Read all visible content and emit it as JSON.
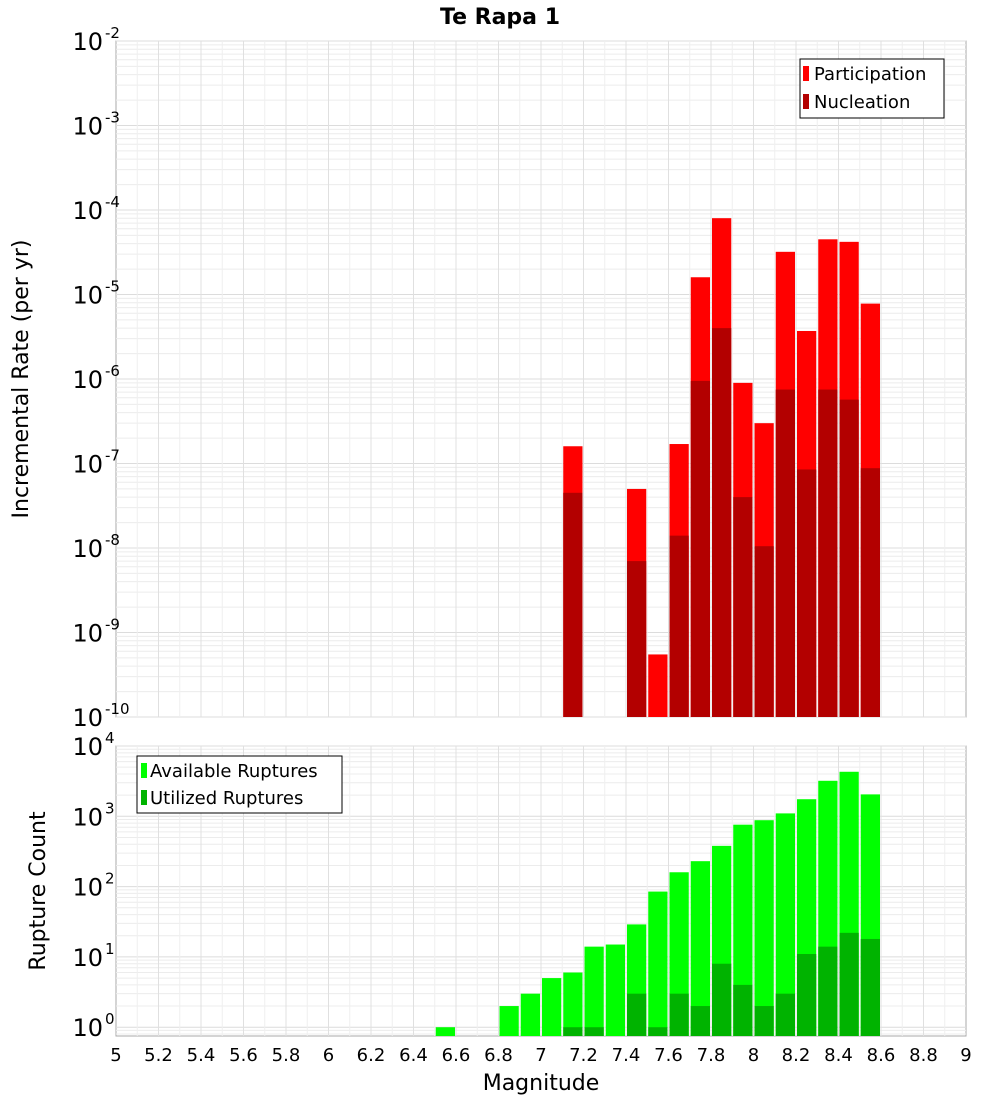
{
  "chart_data": [
    {
      "type": "bar",
      "title": "Te Rapa 1",
      "xlabel": "",
      "ylabel": "Incremental Rate (per yr)",
      "y_scale": "log",
      "ylim": [
        1e-10,
        0.01
      ],
      "xlim": [
        5,
        9
      ],
      "y_ticks": [
        {
          "base": "10",
          "exp": "-10"
        },
        {
          "base": "10",
          "exp": "-9"
        },
        {
          "base": "10",
          "exp": "-8"
        },
        {
          "base": "10",
          "exp": "-7"
        },
        {
          "base": "10",
          "exp": "-6"
        },
        {
          "base": "10",
          "exp": "-5"
        },
        {
          "base": "10",
          "exp": "-4"
        },
        {
          "base": "10",
          "exp": "-3"
        },
        {
          "base": "10",
          "exp": "-2"
        }
      ],
      "grid": true,
      "legend_position": "top-right",
      "bar_width": 0.1,
      "series": [
        {
          "name": "Participation",
          "color": "#ff0000",
          "points": [
            {
              "x": 7.15,
              "y": 1.6e-07
            },
            {
              "x": 7.45,
              "y": 5e-08
            },
            {
              "x": 7.55,
              "y": 5.5e-10
            },
            {
              "x": 7.65,
              "y": 1.7e-07
            },
            {
              "x": 7.75,
              "y": 1.6e-05
            },
            {
              "x": 7.85,
              "y": 8e-05
            },
            {
              "x": 7.95,
              "y": 9e-07
            },
            {
              "x": 8.05,
              "y": 3e-07
            },
            {
              "x": 8.15,
              "y": 3.2e-05
            },
            {
              "x": 8.25,
              "y": 3.7e-06
            },
            {
              "x": 8.35,
              "y": 4.5e-05
            },
            {
              "x": 8.45,
              "y": 4.2e-05
            },
            {
              "x": 8.55,
              "y": 7.8e-06
            }
          ]
        },
        {
          "name": "Nucleation",
          "color": "#b30000",
          "points": [
            {
              "x": 7.15,
              "y": 4.5e-08
            },
            {
              "x": 7.45,
              "y": 7e-09
            },
            {
              "x": 7.65,
              "y": 1.4e-08
            },
            {
              "x": 7.75,
              "y": 9.5e-07
            },
            {
              "x": 7.85,
              "y": 4e-06
            },
            {
              "x": 7.95,
              "y": 4e-08
            },
            {
              "x": 8.05,
              "y": 1.05e-08
            },
            {
              "x": 8.15,
              "y": 7.5e-07
            },
            {
              "x": 8.25,
              "y": 8.5e-08
            },
            {
              "x": 8.35,
              "y": 7.5e-07
            },
            {
              "x": 8.45,
              "y": 5.7e-07
            },
            {
              "x": 8.55,
              "y": 8.8e-08
            }
          ]
        }
      ]
    },
    {
      "type": "bar",
      "title": "",
      "xlabel": "Magnitude",
      "ylabel": "Rupture Count",
      "y_scale": "log",
      "ylim": [
        0.75,
        10000
      ],
      "xlim": [
        5,
        9
      ],
      "x_ticks": [
        "5",
        "5.2",
        "5.4",
        "5.6",
        "5.8",
        "6",
        "6.2",
        "6.4",
        "6.6",
        "6.8",
        "7",
        "7.2",
        "7.4",
        "7.6",
        "7.8",
        "8",
        "8.2",
        "8.4",
        "8.6",
        "8.8",
        "9"
      ],
      "y_ticks": [
        {
          "base": "10",
          "exp": "0"
        },
        {
          "base": "10",
          "exp": "1"
        },
        {
          "base": "10",
          "exp": "2"
        },
        {
          "base": "10",
          "exp": "3"
        },
        {
          "base": "10",
          "exp": "4"
        }
      ],
      "grid": true,
      "legend_position": "top-left",
      "bar_width": 0.1,
      "series": [
        {
          "name": "Available Ruptures",
          "color": "#00ff00",
          "points": [
            {
              "x": 6.55,
              "y": 1
            },
            {
              "x": 6.85,
              "y": 2
            },
            {
              "x": 6.95,
              "y": 3
            },
            {
              "x": 7.05,
              "y": 5
            },
            {
              "x": 7.15,
              "y": 6
            },
            {
              "x": 7.25,
              "y": 14
            },
            {
              "x": 7.35,
              "y": 15
            },
            {
              "x": 7.45,
              "y": 29
            },
            {
              "x": 7.55,
              "y": 85
            },
            {
              "x": 7.65,
              "y": 160
            },
            {
              "x": 7.75,
              "y": 230
            },
            {
              "x": 7.85,
              "y": 380
            },
            {
              "x": 7.95,
              "y": 760
            },
            {
              "x": 8.05,
              "y": 880
            },
            {
              "x": 8.15,
              "y": 1100
            },
            {
              "x": 8.25,
              "y": 1750
            },
            {
              "x": 8.35,
              "y": 3200
            },
            {
              "x": 8.45,
              "y": 4300
            },
            {
              "x": 8.55,
              "y": 2050
            }
          ]
        },
        {
          "name": "Utilized Ruptures",
          "color": "#00b300",
          "points": [
            {
              "x": 7.15,
              "y": 1
            },
            {
              "x": 7.25,
              "y": 1
            },
            {
              "x": 7.45,
              "y": 3
            },
            {
              "x": 7.55,
              "y": 1
            },
            {
              "x": 7.65,
              "y": 3
            },
            {
              "x": 7.75,
              "y": 2
            },
            {
              "x": 7.85,
              "y": 8
            },
            {
              "x": 7.95,
              "y": 4
            },
            {
              "x": 8.05,
              "y": 2
            },
            {
              "x": 8.15,
              "y": 3
            },
            {
              "x": 8.25,
              "y": 11
            },
            {
              "x": 8.35,
              "y": 14
            },
            {
              "x": 8.45,
              "y": 22
            },
            {
              "x": 8.55,
              "y": 18
            }
          ]
        }
      ]
    }
  ]
}
